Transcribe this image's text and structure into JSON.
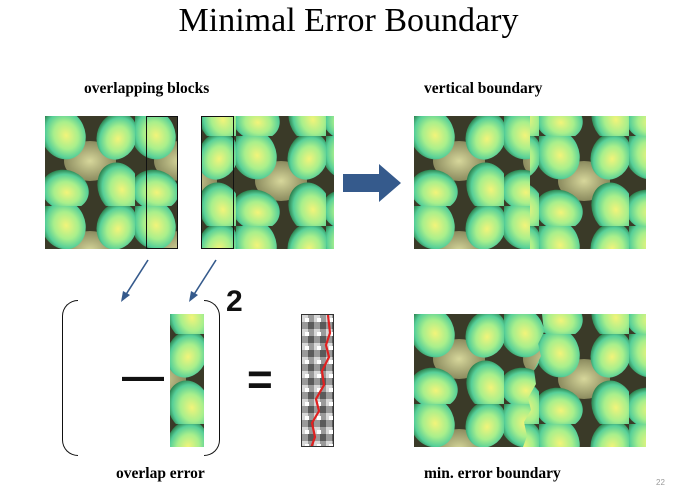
{
  "slide": {
    "title": "Minimal Error Boundary",
    "labels": {
      "overlapping_blocks": "overlapping blocks",
      "vertical_boundary": "vertical boundary",
      "overlap_error": "overlap error",
      "min_error_boundary": "min. error boundary"
    },
    "equation": {
      "minus": "—",
      "equals": "=",
      "exponent": "2"
    },
    "page_number": "22"
  },
  "colors": {
    "texture_background": "#4a4a33",
    "cell_outer": "#2c8a4e",
    "cell_mid": "#6fe0a6",
    "cell_center": "#f2f47a",
    "gap_light": "#c9c98e",
    "arrow": "#355a8c",
    "boundary_line": "#e02020"
  }
}
